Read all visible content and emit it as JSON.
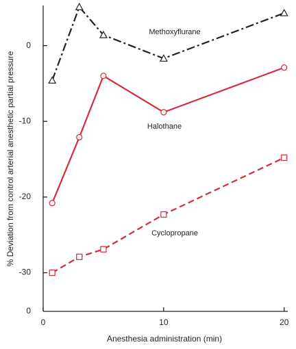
{
  "chart_data": {
    "type": "line",
    "x_label": "Anesthesia administration (min)",
    "y_label": "% Deviation from control arterial anesthetic partial pressure",
    "x": [
      0.75,
      3,
      5,
      10,
      20
    ],
    "series": [
      {
        "name": "Methoxyflurane",
        "color": "#222222",
        "marker": "triangle",
        "dash": "12,4,3,4",
        "values": [
          -4.6,
          5.1,
          1.4,
          -1.7,
          4.3
        ]
      },
      {
        "name": "Halothane",
        "color": "#d42a3c",
        "marker": "circle",
        "dash": "none",
        "values": [
          -20.8,
          -12.1,
          -4.0,
          -8.8,
          -2.9
        ]
      },
      {
        "name": "Cyclopropane",
        "color": "#d42a3c",
        "marker": "square",
        "dash": "9,5",
        "values": [
          -30.0,
          -27.9,
          -26.9,
          -22.3,
          -14.8
        ]
      }
    ],
    "xlim": [
      0,
      20.3
    ],
    "xticks": [
      0,
      10,
      20
    ],
    "ylim": [
      -35.1,
      5.3
    ],
    "yticks": [
      0,
      -10,
      -20,
      -30
    ],
    "axis_break_label": "0"
  }
}
